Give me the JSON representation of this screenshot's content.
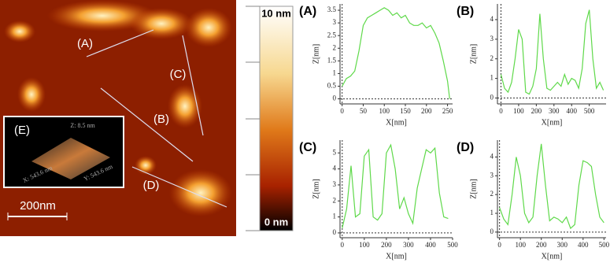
{
  "image": {
    "line_labels": [
      "(A)",
      "(B)",
      "(C)",
      "(D)"
    ],
    "inset_label": "(E)",
    "inset_axes": [
      "Z: 8.5 nm",
      "X: 543.6 nm",
      "Y: 543.6 nm"
    ],
    "scale_bar": "200nm",
    "colorbar": {
      "top": "10 nm",
      "bottom": "0 nm"
    }
  },
  "chart_data": [
    {
      "type": "line",
      "title": "(A)",
      "x_label": "X[nm]",
      "y_label": "Z[nm]",
      "color": "#5fd94a",
      "x": [
        0,
        10,
        20,
        30,
        40,
        50,
        60,
        70,
        80,
        90,
        100,
        110,
        120,
        130,
        140,
        150,
        160,
        170,
        180,
        190,
        200,
        210,
        220,
        230,
        240,
        250,
        255
      ],
      "values": [
        0.5,
        0.8,
        0.9,
        1.1,
        1.9,
        2.9,
        3.2,
        3.3,
        3.4,
        3.5,
        3.6,
        3.5,
        3.3,
        3.4,
        3.2,
        3.3,
        3.0,
        2.9,
        2.9,
        3.0,
        2.8,
        2.9,
        2.6,
        2.2,
        1.5,
        0.7,
        0
      ],
      "xlim": [
        -5,
        262
      ],
      "xticks": [
        0,
        50,
        100,
        150,
        200,
        250
      ],
      "ylim": [
        -0.2,
        3.75
      ],
      "yticks": [
        0,
        0.5,
        1,
        1.5,
        2,
        2.5,
        3,
        3.5
      ]
    },
    {
      "type": "line",
      "title": "(B)",
      "x_label": "X[nm]",
      "y_label": "Z[nm]",
      "color": "#5fd94a",
      "x": [
        0,
        20,
        40,
        60,
        80,
        100,
        120,
        140,
        160,
        180,
        200,
        220,
        240,
        260,
        280,
        300,
        320,
        340,
        360,
        380,
        400,
        420,
        440,
        460,
        480,
        500,
        520,
        540,
        560,
        580
      ],
      "values": [
        1.2,
        0.5,
        0.3,
        0.8,
        2.0,
        3.5,
        3.0,
        0.3,
        0.2,
        0.6,
        1.5,
        4.3,
        2.0,
        0.5,
        0.4,
        0.6,
        0.8,
        0.6,
        1.2,
        0.7,
        1.0,
        0.9,
        0.5,
        1.5,
        3.8,
        4.5,
        2.0,
        0.5,
        0.8,
        0.4
      ],
      "xlim": [
        -20,
        595
      ],
      "xticks": [
        0,
        100,
        200,
        300,
        400,
        500
      ],
      "ylim": [
        -0.3,
        4.8
      ],
      "yticks": [
        0,
        1,
        2,
        3,
        4
      ]
    },
    {
      "type": "line",
      "title": "(C)",
      "x_label": "X[nm]",
      "y_label": "Z[nm]",
      "color": "#5fd94a",
      "x": [
        0,
        20,
        40,
        60,
        80,
        100,
        120,
        140,
        160,
        180,
        200,
        220,
        240,
        260,
        280,
        300,
        320,
        340,
        360,
        380,
        400,
        420,
        440,
        460,
        480
      ],
      "values": [
        0.3,
        1.5,
        4.2,
        1.0,
        1.2,
        4.8,
        5.2,
        1.0,
        0.8,
        1.2,
        5.0,
        5.5,
        4.0,
        1.5,
        2.2,
        1.2,
        0.6,
        2.8,
        4.0,
        5.2,
        5.0,
        5.3,
        2.5,
        1.0,
        0.9
      ],
      "xlim": [
        -10,
        500
      ],
      "xticks": [
        0,
        100,
        200,
        300,
        400,
        500
      ],
      "ylim": [
        -0.3,
        5.8
      ],
      "yticks": [
        0,
        1,
        2,
        3,
        4,
        5
      ]
    },
    {
      "type": "line",
      "title": "(D)",
      "x_label": "X[nm]",
      "y_label": "Z[nm]",
      "color": "#5fd94a",
      "x": [
        0,
        20,
        40,
        60,
        80,
        100,
        120,
        140,
        160,
        180,
        200,
        220,
        240,
        260,
        280,
        300,
        320,
        340,
        360,
        380,
        400,
        420,
        440,
        460,
        480,
        500
      ],
      "values": [
        1.3,
        0.7,
        0.4,
        2.0,
        4.0,
        3.0,
        1.0,
        0.5,
        0.8,
        3.0,
        4.7,
        2.5,
        0.6,
        0.8,
        0.7,
        0.5,
        0.8,
        0.2,
        0.4,
        2.5,
        3.8,
        3.7,
        3.5,
        2.0,
        0.8,
        0.5
      ],
      "xlim": [
        -10,
        510
      ],
      "xticks": [
        0,
        100,
        200,
        300,
        400,
        500
      ],
      "ylim": [
        -0.3,
        4.9
      ],
      "yticks": [
        0,
        1,
        2,
        3,
        4
      ]
    }
  ]
}
